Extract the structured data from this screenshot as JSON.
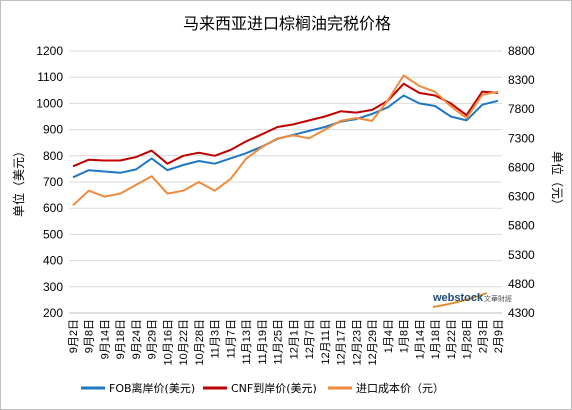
{
  "chart_data": {
    "type": "line",
    "title": "马来西亚进口棕榈油完税价格",
    "ylabel_left": "单位（美元）",
    "ylabel_right": "单位（元）",
    "ylim_left": [
      200,
      1200
    ],
    "ylim_right": [
      4300,
      8800
    ],
    "yticks_left": [
      200,
      300,
      400,
      500,
      600,
      700,
      800,
      900,
      1000,
      1100,
      1200
    ],
    "yticks_right": [
      4300,
      4800,
      5300,
      5800,
      6300,
      6800,
      7300,
      7800,
      8300,
      8800
    ],
    "categories": [
      "9月2日",
      "9月8日",
      "9月14日",
      "9月18日",
      "9月24日",
      "9月29日",
      "10月16日",
      "10月22日",
      "10月28日",
      "11月3日",
      "11月7日",
      "11月13日",
      "11月19日",
      "11月25日",
      "12月1日",
      "12月7日",
      "12月11日",
      "12月17日",
      "12月23日",
      "12月29日",
      "1月4日",
      "1月8日",
      "1月14日",
      "1月18日",
      "1月22日",
      "1月28日",
      "2月3日",
      "2月9日"
    ],
    "grid": true,
    "legend_position": "bottom",
    "series": [
      {
        "name": "FOB离岸价(美元)",
        "axis": "left",
        "color": "#1f77c4",
        "values": [
          718,
          745,
          740,
          735,
          748,
          790,
          745,
          765,
          780,
          770,
          790,
          810,
          835,
          865,
          880,
          895,
          910,
          930,
          940,
          960,
          985,
          1030,
          1000,
          990,
          950,
          935,
          995,
          1010
        ]
      },
      {
        "name": "CNF到岸价(美元)",
        "axis": "left",
        "color": "#c00000",
        "values": [
          760,
          785,
          782,
          782,
          795,
          820,
          770,
          800,
          812,
          800,
          822,
          855,
          882,
          910,
          920,
          935,
          950,
          970,
          965,
          975,
          1010,
          1075,
          1040,
          1030,
          1000,
          955,
          1045,
          1040
        ]
      },
      {
        "name": "进口成本价（元）",
        "axis": "right",
        "color": "#f08a3c",
        "values": [
          6150,
          6400,
          6300,
          6350,
          6500,
          6650,
          6350,
          6400,
          6550,
          6400,
          6600,
          6950,
          7150,
          7300,
          7350,
          7300,
          7450,
          7600,
          7650,
          7600,
          7950,
          8380,
          8200,
          8100,
          7850,
          7650,
          8050,
          8100
        ]
      }
    ]
  },
  "watermark": {
    "brand": "webstock",
    "sub": "文華財經"
  }
}
